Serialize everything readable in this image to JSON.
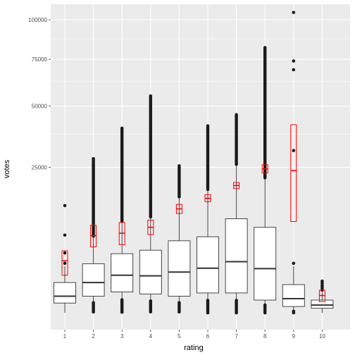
{
  "chart_data": {
    "type": "boxplot",
    "xlabel": "rating",
    "ylabel": "votes",
    "categories": [
      "1",
      "2",
      "3",
      "4",
      "5",
      "6",
      "7",
      "8",
      "9",
      "10"
    ],
    "y_scale": "sqrt",
    "ylim": [
      0,
      115000
    ],
    "y_ticks": [
      {
        "value": 25000,
        "label": "25000"
      },
      {
        "value": 50000,
        "label": "50000"
      },
      {
        "value": 75000,
        "label": "75000"
      },
      {
        "value": 100000,
        "label": "100000"
      }
    ],
    "grid": true,
    "colors": {
      "panel": "#ebebeb",
      "grid": "#ffffff",
      "box_fill": "#ffffff",
      "box_stroke": "#333333",
      "point": "#1a1a1a",
      "mean_box": "#ff0000"
    },
    "boxes": [
      {
        "x": "1",
        "q1": 160,
        "median": 400,
        "q3": 1200,
        "whisker_low": 5,
        "whisker_high": 2700
      },
      {
        "x": "2",
        "q1": 400,
        "median": 1200,
        "q3": 3000,
        "whisker_low": 5,
        "whisker_high": 7000
      },
      {
        "x": "3",
        "q1": 600,
        "median": 1800,
        "q3": 4300,
        "whisker_low": 5,
        "whisker_high": 10000
      },
      {
        "x": "4",
        "q1": 500,
        "median": 1750,
        "q3": 4800,
        "whisker_low": 5,
        "whisker_high": 11000
      },
      {
        "x": "5",
        "q1": 400,
        "median": 2100,
        "q3": 6300,
        "whisker_low": 5,
        "whisker_high": 16000
      },
      {
        "x": "6",
        "q1": 550,
        "median": 2500,
        "q3": 7000,
        "whisker_low": 5,
        "whisker_high": 18000
      },
      {
        "x": "7",
        "q1": 550,
        "median": 3250,
        "q3": 10600,
        "whisker_low": 5,
        "whisker_high": 26000
      },
      {
        "x": "8",
        "q1": 250,
        "median": 2450,
        "q3": 8800,
        "whisker_low": 5,
        "whisker_high": 21500
      },
      {
        "x": "9",
        "q1": 80,
        "median": 300,
        "q3": 1050,
        "whisker_low": 5,
        "whisker_high": 2700
      },
      {
        "x": "10",
        "q1": 50,
        "median": 110,
        "q3": 250,
        "whisker_low": 5,
        "whisker_high": 580
      }
    ],
    "outlier_ranges": [
      {
        "x": "1",
        "high": [
          3050,
          4400,
          7300,
          13700
        ]
      },
      {
        "x": "2",
        "low_to": 170,
        "high_from": 7000,
        "high_to": 28000
      },
      {
        "x": "3",
        "low_to": 260,
        "high_from": 10000,
        "high_to": 40000
      },
      {
        "x": "4",
        "low_to": 220,
        "high_from": 11000,
        "high_to": 55000
      },
      {
        "x": "5",
        "low_to": 170,
        "high_from": 16000,
        "high_to": 25500
      },
      {
        "x": "6",
        "low_to": 240,
        "high_from": 18000,
        "high_to": 41000
      },
      {
        "x": "7",
        "low_to": 240,
        "high_from": 26000,
        "high_to": 46000
      },
      {
        "x": "8",
        "low_to": 110,
        "high_from": 21500,
        "high_to": 82000
      },
      {
        "x": "9",
        "low_to": 15,
        "high": [
          3050,
          31000,
          69000,
          74000,
          105000
        ]
      },
      {
        "x": "10",
        "high": [
          700,
          800,
          900,
          1000,
          1150,
          1300
        ]
      }
    ],
    "mean_boxes": [
      {
        "x": "1",
        "mean": 3350,
        "low": 1800,
        "high": 4700
      },
      {
        "x": "2",
        "mean": 7200,
        "low": 5300,
        "high": 9200
      },
      {
        "x": "3",
        "mean": 7650,
        "low": 5650,
        "high": 9800
      },
      {
        "x": "4",
        "mean": 8800,
        "low": 7400,
        "high": 10300
      },
      {
        "x": "5",
        "mean": 12900,
        "low": 11800,
        "high": 14000
      },
      {
        "x": "6",
        "mean": 15600,
        "low": 14700,
        "high": 16600
      },
      {
        "x": "7",
        "mean": 19200,
        "low": 18300,
        "high": 20100
      },
      {
        "x": "8",
        "mean": 24450,
        "low": 23050,
        "high": 25900
      },
      {
        "x": "9",
        "mean": 23900,
        "low": 10000,
        "high": 41500
      },
      {
        "x": "10",
        "mean": 430,
        "low": 200,
        "high": 700
      }
    ]
  }
}
